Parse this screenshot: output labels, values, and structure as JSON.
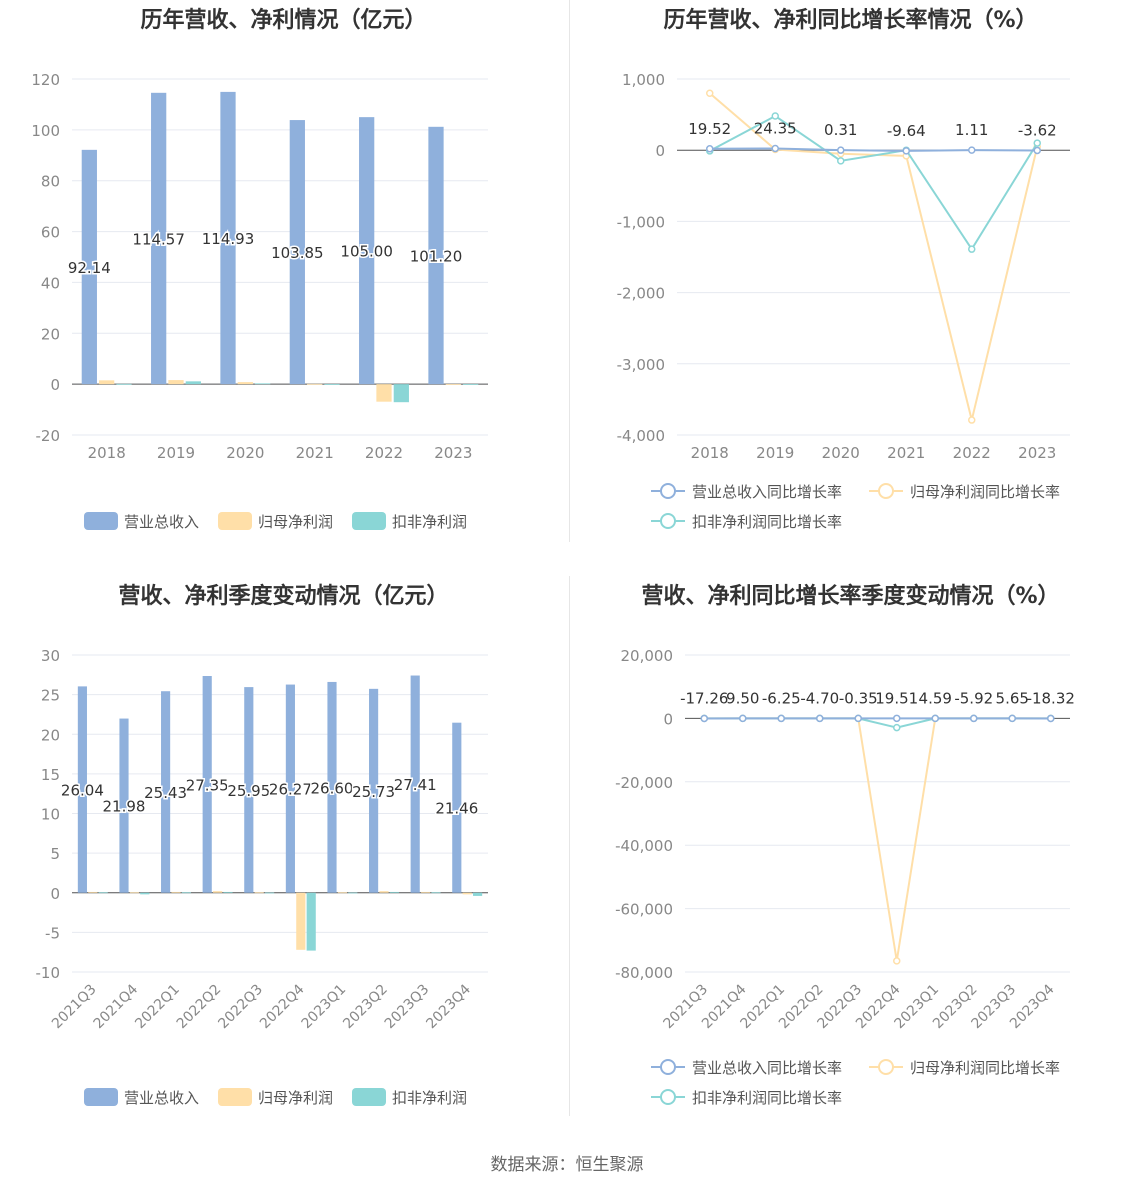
{
  "colors": {
    "revenue": "#8fb0dc",
    "parent_profit": "#ffdfa8",
    "nonrecurring_profit": "#8ad6d6",
    "grid": "#e6e9f0",
    "axis_text": "#888888"
  },
  "footer": {
    "source": "数据来源：恒生聚源"
  },
  "chart_data": [
    {
      "type": "bar",
      "title": "历年营收、净利情况（亿元）",
      "categories": [
        "2018",
        "2019",
        "2020",
        "2021",
        "2022",
        "2023"
      ],
      "ylim": [
        -20,
        120
      ],
      "yticks": [
        "120",
        "100",
        "80",
        "60",
        "40",
        "20",
        "0",
        "-20"
      ],
      "legend_position": "bottom",
      "series": [
        {
          "name": "营业总收入",
          "values": [
            92.14,
            114.57,
            114.93,
            103.85,
            105.0,
            101.2
          ],
          "labels": [
            "92.14",
            "114.57",
            "114.93",
            "103.85",
            "105.00",
            "101.20"
          ]
        },
        {
          "name": "归母净利润",
          "values": [
            1.5,
            1.6,
            0.8,
            0.1,
            -6.9,
            0.05
          ]
        },
        {
          "name": "扣非净利润",
          "values": [
            0.1,
            1.1,
            0.3,
            0.05,
            -7.1,
            0.05
          ]
        }
      ]
    },
    {
      "type": "line",
      "title": "历年营收、净利同比增长率情况（%）",
      "categories": [
        "2018",
        "2019",
        "2020",
        "2021",
        "2022",
        "2023"
      ],
      "ylim": [
        -4000,
        1000
      ],
      "yticks": [
        "1,000",
        "0",
        "-1,000",
        "-2,000",
        "-3,000",
        "-4,000"
      ],
      "legend_position": "bottom",
      "series": [
        {
          "name": "营业总收入同比增长率",
          "values": [
            19.52,
            24.35,
            0.31,
            -9.64,
            1.11,
            -3.62
          ],
          "labels": [
            "19.52",
            "24.35",
            "0.31",
            "-9.64",
            "1.11",
            "-3.62"
          ]
        },
        {
          "name": "归母净利润同比增长率",
          "values": [
            800,
            10,
            -50,
            -80,
            -3790,
            50
          ]
        },
        {
          "name": "扣非净利润同比增长率",
          "values": [
            -10,
            480,
            -150,
            0,
            -1390,
            100
          ]
        }
      ]
    },
    {
      "type": "bar",
      "title": "营收、净利季度变动情况（亿元）",
      "categories": [
        "2021Q3",
        "2021Q4",
        "2022Q1",
        "2022Q2",
        "2022Q3",
        "2022Q4",
        "2023Q1",
        "2023Q2",
        "2023Q3",
        "2023Q4"
      ],
      "ylim": [
        -10,
        30
      ],
      "yticks": [
        "30",
        "25",
        "20",
        "15",
        "10",
        "5",
        "0",
        "-5",
        "-10"
      ],
      "legend_position": "bottom",
      "series": [
        {
          "name": "营业总收入",
          "values": [
            26.04,
            21.98,
            25.43,
            27.35,
            25.95,
            26.27,
            26.6,
            25.73,
            27.41,
            21.46
          ],
          "labels": [
            "26.04",
            "21.98",
            "25.43",
            "27.35",
            "25.95",
            "26.27",
            "26.60",
            "25.73",
            "27.41",
            "21.46"
          ]
        },
        {
          "name": "归母净利润",
          "values": [
            0.1,
            0.05,
            0.1,
            0.2,
            0.05,
            -7.2,
            0.05,
            0.2,
            0.1,
            -0.2
          ]
        },
        {
          "name": "扣非净利润",
          "values": [
            0.05,
            -0.2,
            0.05,
            0.1,
            0.02,
            -7.3,
            0.02,
            0.1,
            0.05,
            -0.4
          ]
        }
      ]
    },
    {
      "type": "line",
      "title": "营收、净利同比增长率季度变动情况（%）",
      "categories": [
        "2021Q3",
        "2021Q4",
        "2022Q1",
        "2022Q2",
        "2022Q3",
        "2022Q4",
        "2023Q1",
        "2023Q2",
        "2023Q3",
        "2023Q4"
      ],
      "ylim": [
        -80000,
        20000
      ],
      "yticks": [
        "20,000",
        "0",
        "-20,000",
        "-40,000",
        "-60,000",
        "-80,000"
      ],
      "legend_position": "bottom",
      "series": [
        {
          "name": "营业总收入同比增长率",
          "values": [
            -17.26,
            9.5,
            -6.25,
            -4.7,
            -0.35,
            19.51,
            4.59,
            -5.92,
            5.65,
            -18.32
          ],
          "labels": [
            "-17.26",
            "9.50",
            "-6.25",
            "-4.70",
            "-0.35",
            "19.51",
            "4.59",
            "-5.92",
            "5.65",
            "-18.32"
          ]
        },
        {
          "name": "归母净利润同比增长率",
          "values": [
            0,
            0,
            0,
            0,
            0,
            -76500,
            0,
            0,
            0,
            0
          ]
        },
        {
          "name": "扣非净利润同比增长率",
          "values": [
            0,
            0,
            0,
            0,
            0,
            -2900,
            0,
            0,
            0,
            0
          ]
        }
      ]
    }
  ]
}
